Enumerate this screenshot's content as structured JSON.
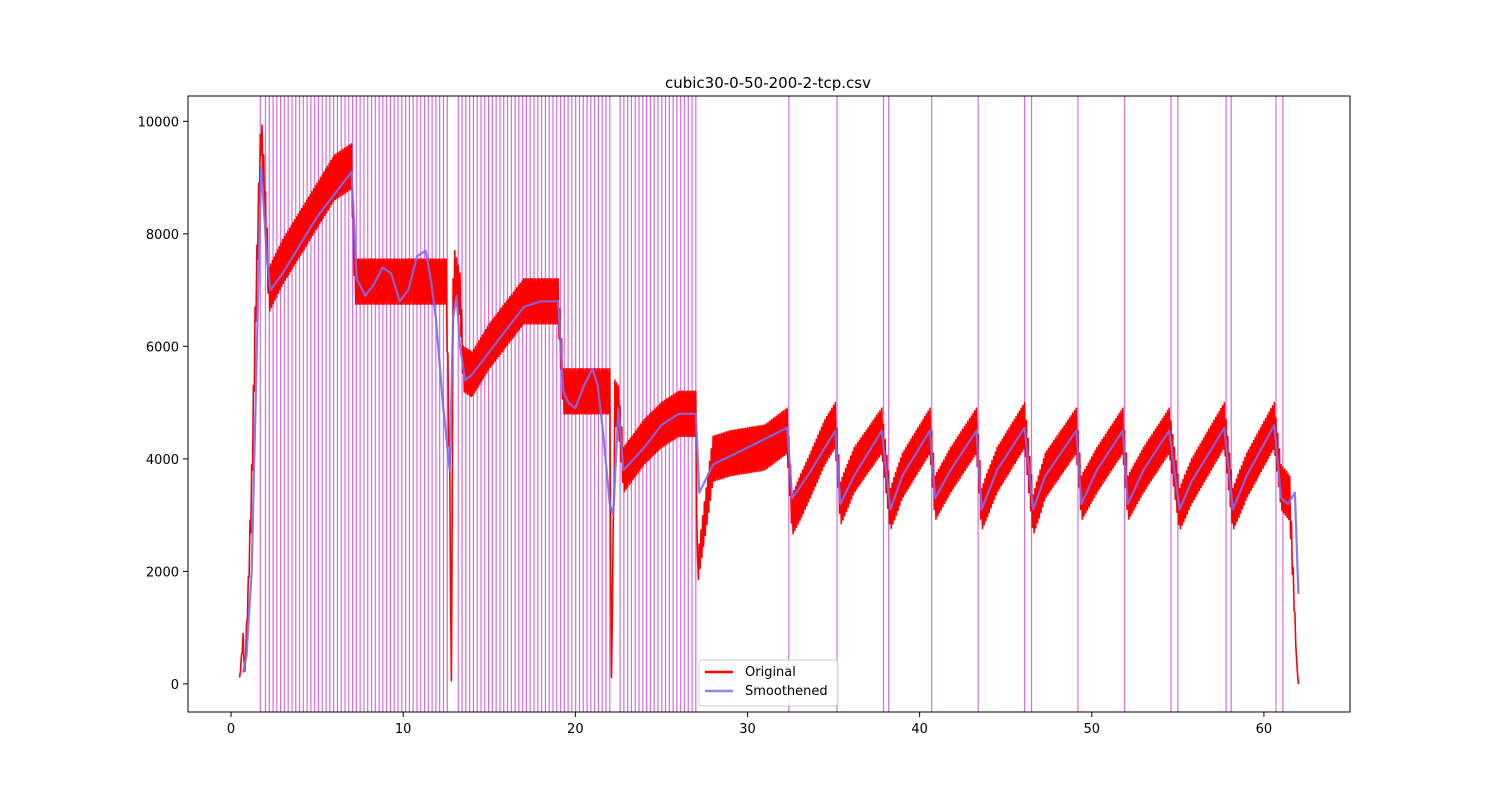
{
  "chart_data": {
    "type": "line",
    "title": "cubic30-0-50-200-2-tcp.csv",
    "xlabel": "",
    "ylabel": "",
    "xlim": [
      -2.5,
      65
    ],
    "ylim": [
      -500,
      10450
    ],
    "x_ticks": [
      0,
      10,
      20,
      30,
      40,
      50,
      60
    ],
    "x_tick_labels": [
      "0",
      "10",
      "20",
      "30",
      "40",
      "50",
      "60"
    ],
    "y_ticks": [
      0,
      2000,
      4000,
      6000,
      8000,
      10000
    ],
    "y_tick_labels": [
      "0",
      "2000",
      "4000",
      "6000",
      "8000",
      "10000"
    ],
    "grid": false,
    "legend": {
      "position": "lower-center",
      "entries": [
        {
          "label": "Original",
          "color": "#ff0000"
        },
        {
          "label": "Smoothened",
          "color": "#7b6cf0"
        }
      ]
    },
    "event_markers": {
      "color": "#cc55dd",
      "dense_ranges": [
        [
          1.7,
          1.7
        ],
        [
          2.0,
          12.6
        ],
        [
          13.2,
          22.0
        ],
        [
          22.6,
          27.0
        ]
      ],
      "dense_spacing": 0.22,
      "x": [
        32.4,
        35.2,
        37.9,
        38.2,
        40.7,
        43.4,
        46.1,
        46.5,
        49.2,
        51.9,
        54.6,
        55.0,
        57.8,
        58.1,
        60.7,
        61.1
      ]
    },
    "series": [
      {
        "name": "Original",
        "color": "#ff0000",
        "x": [
          0.5,
          0.7,
          0.8,
          1.0,
          1.2,
          1.4,
          1.6,
          1.75,
          1.9,
          2.1,
          2.2,
          3.0,
          4.0,
          5.0,
          6.0,
          7.0,
          7.2,
          7.5,
          8.5,
          9.5,
          10.5,
          11.5,
          12.5,
          12.7,
          12.8,
          12.9,
          13.0,
          13.3,
          13.5,
          14.0,
          15.0,
          16.0,
          17.0,
          18.0,
          19.0,
          19.3,
          19.5,
          20.5,
          21.5,
          22.0,
          22.1,
          22.3,
          22.5,
          22.8,
          24.0,
          25.0,
          26.0,
          27.0,
          27.1,
          28.0,
          29.0,
          30.0,
          31.0,
          32.3,
          32.6,
          33.5,
          34.5,
          35.1,
          35.4,
          36.2,
          37.8,
          38.3,
          39.0,
          40.6,
          40.9,
          41.8,
          43.3,
          43.6,
          44.5,
          46.1,
          46.6,
          47.3,
          49.1,
          49.4,
          50.3,
          51.8,
          52.1,
          53.0,
          54.5,
          55.1,
          55.8,
          57.7,
          58.2,
          59.0,
          60.6,
          61.0,
          61.5,
          61.9,
          62.0
        ],
        "y": [
          100,
          800,
          200,
          1700,
          3500,
          6300,
          8500,
          9800,
          9000,
          7700,
          7000,
          7500,
          8000,
          8500,
          9000,
          9200,
          7150,
          7150,
          7150,
          7150,
          7150,
          7150,
          7150,
          3800,
          50,
          6800,
          7300,
          6900,
          5600,
          5500,
          6000,
          6400,
          6800,
          6800,
          6800,
          5200,
          5200,
          5200,
          5200,
          5200,
          100,
          5000,
          4900,
          3800,
          4300,
          4600,
          4800,
          4800,
          2000,
          4000,
          4100,
          4150,
          4200,
          4500,
          3000,
          3600,
          4300,
          4600,
          3200,
          3800,
          4500,
          3100,
          3700,
          4500,
          3300,
          3800,
          4500,
          3100,
          3800,
          4600,
          3000,
          3700,
          4500,
          3300,
          3800,
          4500,
          3300,
          3800,
          4500,
          3100,
          3600,
          4600,
          3100,
          3700,
          4600,
          3500,
          3300,
          400,
          0
        ],
        "noise_amplitude": 400
      },
      {
        "name": "Smoothened",
        "color": "#7b6cf0",
        "x": [
          0.7,
          0.9,
          1.2,
          1.5,
          1.75,
          1.9,
          2.1,
          2.3,
          3.0,
          4.0,
          5.0,
          6.0,
          7.0,
          7.3,
          7.8,
          8.3,
          8.8,
          9.3,
          9.8,
          10.3,
          10.8,
          11.3,
          11.6,
          11.9,
          12.3,
          12.7,
          12.9,
          13.1,
          13.3,
          13.6,
          14.0,
          15.0,
          16.0,
          17.0,
          18.0,
          19.0,
          19.3,
          19.6,
          20.0,
          20.5,
          21.0,
          21.3,
          21.6,
          22.0,
          22.2,
          22.5,
          22.8,
          24.0,
          25.0,
          26.0,
          27.0,
          27.2,
          28.0,
          30.0,
          32.3,
          32.6,
          33.5,
          35.1,
          35.4,
          36.2,
          37.8,
          38.3,
          39.0,
          40.6,
          40.9,
          41.8,
          43.3,
          43.6,
          44.5,
          46.1,
          46.6,
          47.3,
          49.1,
          49.4,
          50.3,
          51.8,
          52.1,
          53.0,
          54.5,
          55.1,
          55.8,
          57.7,
          58.2,
          59.0,
          60.6,
          61.0,
          61.4,
          61.8,
          62.0
        ],
        "y": [
          200,
          500,
          2000,
          6000,
          9200,
          8500,
          7500,
          7000,
          7300,
          7800,
          8300,
          8700,
          9100,
          7200,
          6900,
          7100,
          7400,
          7300,
          6800,
          7000,
          7600,
          7700,
          7200,
          6500,
          5000,
          3800,
          6500,
          6900,
          6000,
          5400,
          5500,
          5900,
          6300,
          6700,
          6800,
          6800,
          5200,
          5000,
          4900,
          5300,
          5600,
          5300,
          4500,
          3200,
          3000,
          4900,
          3800,
          4200,
          4600,
          4800,
          4800,
          3400,
          3900,
          4200,
          4550,
          3300,
          3700,
          4500,
          3200,
          3700,
          4500,
          3100,
          3700,
          4500,
          3300,
          3800,
          4500,
          3100,
          3800,
          4550,
          3100,
          3700,
          4500,
          3200,
          3800,
          4500,
          3200,
          3800,
          4500,
          3100,
          3600,
          4550,
          3100,
          3700,
          4600,
          3300,
          3200,
          3400,
          1600
        ]
      }
    ]
  }
}
